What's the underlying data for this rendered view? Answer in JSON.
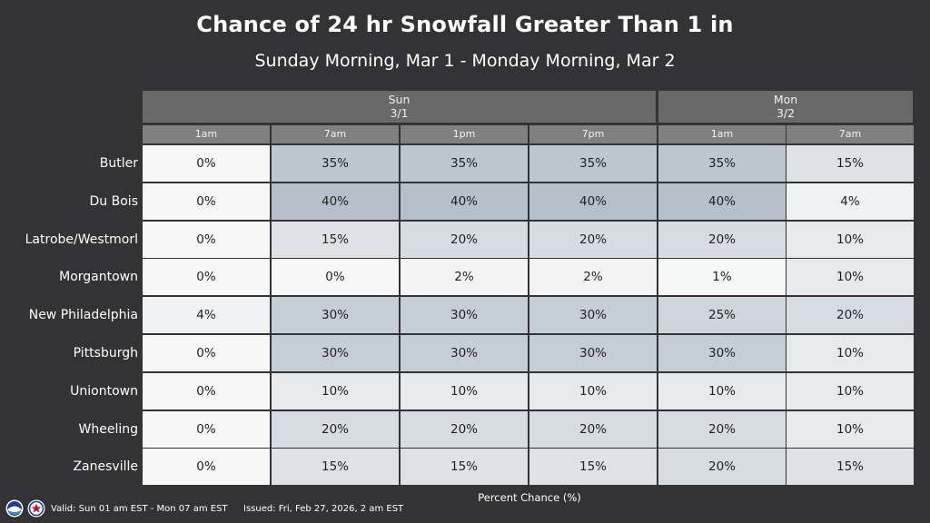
{
  "chart_data": {
    "type": "table",
    "title": "Chance of 24 hr Snowfall Greater Than 1 in",
    "subtitle": "Sunday Morning, Mar 1 - Monday Morning, Mar 2",
    "days": [
      {
        "name": "Sun",
        "date": "3/1"
      },
      {
        "name": "Mon",
        "date": "3/2"
      }
    ],
    "columns": [
      "1am",
      "7am",
      "1pm",
      "7pm",
      "1am",
      "7am"
    ],
    "rows": [
      {
        "location": "Butler",
        "values": [
          0,
          35,
          35,
          35,
          35,
          15
        ]
      },
      {
        "location": "Du Bois",
        "values": [
          0,
          40,
          40,
          40,
          40,
          4
        ]
      },
      {
        "location": "Latrobe/Westmorl",
        "values": [
          0,
          15,
          20,
          20,
          20,
          10
        ]
      },
      {
        "location": "Morgantown",
        "values": [
          0,
          0,
          2,
          2,
          1,
          10
        ]
      },
      {
        "location": "New Philadelphia",
        "values": [
          4,
          30,
          30,
          30,
          25,
          20
        ]
      },
      {
        "location": "Pittsburgh",
        "values": [
          0,
          30,
          30,
          30,
          30,
          10
        ]
      },
      {
        "location": "Uniontown",
        "values": [
          0,
          10,
          10,
          10,
          10,
          10
        ]
      },
      {
        "location": "Wheeling",
        "values": [
          0,
          20,
          20,
          20,
          20,
          10
        ]
      },
      {
        "location": "Zanesville",
        "values": [
          0,
          15,
          15,
          15,
          20,
          15
        ]
      }
    ],
    "value_suffix": "%",
    "xlabel": "Percent Chance (%)"
  },
  "footer": {
    "valid": "Valid: Sun 01 am EST - Mon 07 am EST",
    "issued": "Issued: Fri, Feb 27, 2026, 2 am EST"
  },
  "colors": {
    "background": "#333336",
    "header_day": "#696969",
    "header_hour": "#808080",
    "cell_low": "#f7f7f7",
    "cell_high": "#b5c0ca"
  },
  "icons": [
    "noaa-logo-icon",
    "nws-logo-icon"
  ]
}
